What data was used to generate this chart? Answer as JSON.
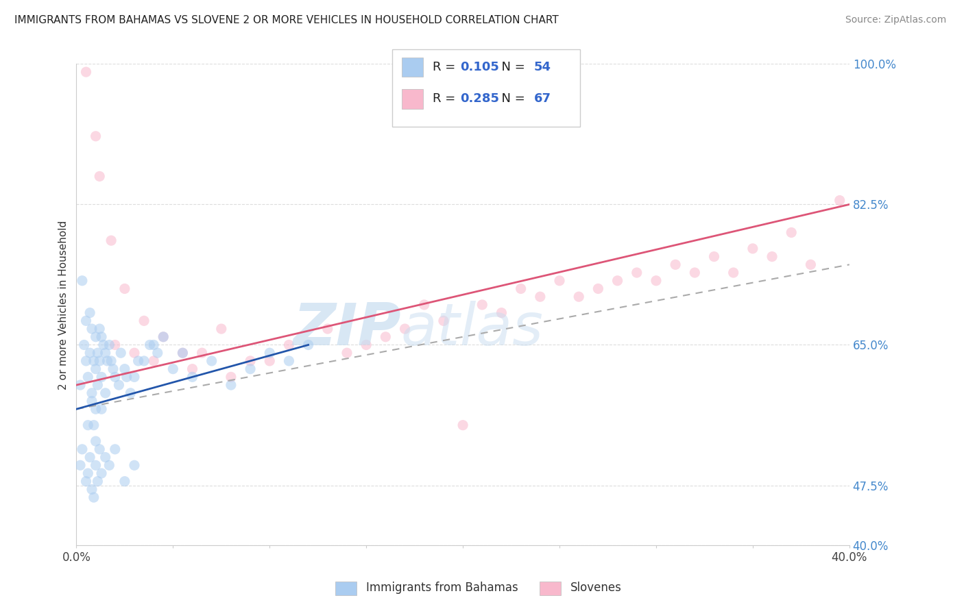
{
  "title": "IMMIGRANTS FROM BAHAMAS VS SLOVENE 2 OR MORE VEHICLES IN HOUSEHOLD CORRELATION CHART",
  "source": "Source: ZipAtlas.com",
  "ylabel": "2 or more Vehicles in Household",
  "xlim": [
    0.0,
    40.0
  ],
  "ylim": [
    40.0,
    100.0
  ],
  "xtick_positions": [
    0.0,
    5.0,
    10.0,
    15.0,
    20.0,
    25.0,
    30.0,
    35.0,
    40.0
  ],
  "xticklabels_show": [
    "0.0%",
    "",
    "",
    "",
    "",
    "",
    "",
    "",
    "40.0%"
  ],
  "ytick_positions": [
    40.0,
    47.5,
    65.0,
    82.5,
    100.0
  ],
  "yticklabels": [
    "40.0%",
    "47.5%",
    "65.0%",
    "82.5%",
    "100.0%"
  ],
  "legend_entries": [
    {
      "label": "Immigrants from Bahamas",
      "color": "#aaccf0",
      "R": "0.105",
      "N": "54"
    },
    {
      "label": "Slovenes",
      "color": "#f8b8cc",
      "R": "0.285",
      "N": "67"
    }
  ],
  "blue_scatter_x": [
    0.2,
    0.3,
    0.4,
    0.5,
    0.5,
    0.6,
    0.7,
    0.7,
    0.8,
    0.8,
    0.9,
    0.9,
    1.0,
    1.0,
    1.0,
    1.1,
    1.1,
    1.2,
    1.2,
    1.3,
    1.3,
    1.4,
    1.5,
    1.5,
    1.6,
    1.7,
    1.8,
    2.0,
    2.2,
    2.5,
    2.8,
    3.0,
    3.5,
    4.0,
    4.5,
    5.0,
    5.5,
    6.0,
    7.0,
    8.0,
    9.0,
    10.0,
    11.0,
    12.0,
    1.9,
    2.3,
    2.6,
    3.2,
    3.8,
    4.2,
    0.6,
    0.8,
    1.0,
    1.3
  ],
  "blue_scatter_y": [
    60.0,
    73.0,
    65.0,
    63.0,
    68.0,
    61.0,
    64.0,
    69.0,
    59.0,
    67.0,
    55.0,
    63.0,
    57.0,
    62.0,
    66.0,
    60.0,
    64.0,
    63.0,
    67.0,
    61.0,
    66.0,
    65.0,
    59.0,
    64.0,
    63.0,
    65.0,
    63.0,
    61.0,
    60.0,
    62.0,
    59.0,
    61.0,
    63.0,
    65.0,
    66.0,
    62.0,
    64.0,
    61.0,
    63.0,
    60.0,
    62.0,
    64.0,
    63.0,
    65.0,
    62.0,
    64.0,
    61.0,
    63.0,
    65.0,
    64.0,
    55.0,
    58.0,
    53.0,
    57.0
  ],
  "blue_scatter_x2": [
    0.2,
    0.3,
    0.5,
    0.6,
    0.7,
    0.8,
    0.9,
    1.0,
    1.1,
    1.2,
    1.3,
    1.5,
    1.7,
    2.0,
    2.5,
    3.0
  ],
  "blue_scatter_y2": [
    50.0,
    52.0,
    48.0,
    49.0,
    51.0,
    47.0,
    46.0,
    50.0,
    48.0,
    52.0,
    49.0,
    51.0,
    50.0,
    52.0,
    48.0,
    50.0
  ],
  "pink_scatter_x": [
    0.5,
    1.2,
    1.8,
    2.5,
    3.5,
    4.5,
    5.5,
    6.5,
    7.5,
    9.0,
    11.0,
    13.0,
    15.0,
    17.0,
    19.0,
    21.0,
    23.0,
    25.0,
    27.0,
    29.0,
    31.0,
    33.0,
    35.0,
    37.0,
    39.5,
    2.0,
    3.0,
    4.0,
    6.0,
    8.0,
    10.0,
    14.0,
    18.0,
    22.0,
    26.0,
    30.0,
    34.0,
    38.0,
    16.0,
    24.0,
    28.0,
    32.0,
    36.0,
    1.0,
    20.0
  ],
  "pink_scatter_y": [
    99.0,
    86.0,
    78.0,
    72.0,
    68.0,
    66.0,
    64.0,
    64.0,
    67.0,
    63.0,
    65.0,
    67.0,
    65.0,
    67.0,
    68.0,
    70.0,
    72.0,
    73.0,
    72.0,
    74.0,
    75.0,
    76.0,
    77.0,
    79.0,
    83.0,
    65.0,
    64.0,
    63.0,
    62.0,
    61.0,
    63.0,
    64.0,
    70.0,
    69.0,
    71.0,
    73.0,
    74.0,
    75.0,
    66.0,
    71.0,
    73.0,
    74.0,
    76.0,
    91.0,
    55.0
  ],
  "blue_line_x": [
    0.0,
    12.0
  ],
  "blue_line_y": [
    57.0,
    65.0
  ],
  "dash_line_x": [
    0.0,
    40.0
  ],
  "dash_line_y": [
    57.0,
    75.0
  ],
  "pink_line_x": [
    0.0,
    40.0
  ],
  "pink_line_y": [
    60.0,
    82.5
  ],
  "watermark_part1": "ZIP",
  "watermark_part2": "atlas",
  "title_color": "#222222",
  "source_color": "#888888",
  "blue_dot_color": "#aaccf0",
  "pink_dot_color": "#f8b8cc",
  "blue_line_color": "#2255aa",
  "dash_line_color": "#aaaaaa",
  "pink_line_color": "#dd5577",
  "ylabel_color": "#333333",
  "ytick_color": "#4488cc",
  "xtick_color": "#444444",
  "grid_color": "#dddddd",
  "background_color": "#ffffff",
  "legend_border_color": "#cccccc",
  "legend_R_N_color": "#3366cc",
  "dot_size": 120,
  "dot_alpha": 0.55
}
